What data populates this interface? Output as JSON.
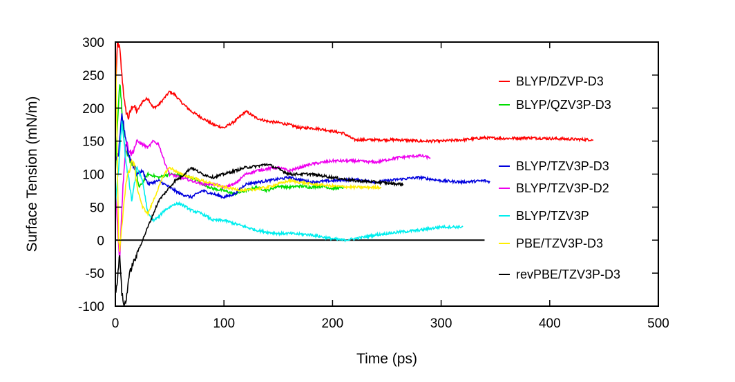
{
  "chart_data": {
    "type": "line",
    "title": "",
    "xlabel": "Time (ps)",
    "ylabel": "Surface Tension (mN/m)",
    "xlim": [
      0,
      500
    ],
    "ylim": [
      -100,
      300
    ],
    "x_ticks": [
      "0",
      "100",
      "200",
      "300",
      "400",
      "500"
    ],
    "y_ticks": [
      "300",
      "250",
      "200",
      "150",
      "100",
      "50",
      "0",
      "-50",
      "-100"
    ],
    "legend_position": "right",
    "reference_line": {
      "x": [
        0,
        340
      ],
      "y": 0,
      "color": "#000000"
    },
    "series": [
      {
        "name": "BLYP/DZVP-D3",
        "color": "#ff0000",
        "x": [
          0,
          2,
          4,
          6,
          9,
          12,
          16,
          20,
          25,
          30,
          35,
          40,
          45,
          50,
          55,
          60,
          70,
          80,
          90,
          100,
          110,
          120,
          130,
          140,
          150,
          160,
          170,
          180,
          190,
          200,
          210,
          220,
          240,
          260,
          280,
          300,
          320,
          340,
          360,
          380,
          400,
          420,
          440
        ],
        "y": [
          220,
          300,
          290,
          250,
          200,
          185,
          205,
          195,
          210,
          215,
          200,
          205,
          215,
          225,
          220,
          210,
          195,
          185,
          175,
          170,
          180,
          195,
          185,
          180,
          178,
          175,
          170,
          170,
          168,
          165,
          162,
          152,
          152,
          152,
          150,
          150,
          152,
          155,
          154,
          155,
          154,
          153,
          152
        ]
      },
      {
        "name": "BLYP/QZV3P-D3",
        "color": "#00dd00",
        "x": [
          0,
          2,
          4,
          6,
          8,
          10,
          14,
          18,
          22,
          26,
          30,
          40,
          50,
          60,
          70,
          80,
          90,
          100,
          110,
          120,
          130,
          140,
          150,
          160,
          170,
          180,
          190,
          200,
          210
        ],
        "y": [
          100,
          180,
          240,
          200,
          150,
          130,
          120,
          110,
          80,
          90,
          100,
          95,
          100,
          98,
          95,
          85,
          78,
          75,
          70,
          75,
          80,
          75,
          82,
          80,
          82,
          80,
          82,
          78,
          80
        ]
      },
      {
        "name": "BLYP/TZV3P-D3",
        "color": "#0000dd",
        "x": [
          0,
          3,
          6,
          9,
          12,
          15,
          20,
          25,
          30,
          40,
          50,
          60,
          70,
          80,
          90,
          100,
          110,
          120,
          140,
          160,
          180,
          200,
          220,
          240,
          260,
          280,
          300,
          320,
          340,
          345
        ],
        "y": [
          120,
          130,
          190,
          160,
          130,
          120,
          100,
          105,
          85,
          90,
          80,
          70,
          65,
          75,
          70,
          65,
          70,
          85,
          90,
          95,
          88,
          90,
          92,
          88,
          92,
          95,
          90,
          88,
          90,
          88
        ]
      },
      {
        "name": "BLYP/TZV3P-D2",
        "color": "#ee00ee",
        "x": [
          0,
          2,
          4,
          6,
          8,
          10,
          12,
          15,
          20,
          25,
          30,
          35,
          40,
          45,
          50,
          60,
          70,
          80,
          90,
          100,
          110,
          120,
          130,
          140,
          150,
          160,
          170,
          180,
          200,
          220,
          240,
          260,
          280,
          290
        ],
        "y": [
          80,
          20,
          -30,
          50,
          110,
          150,
          140,
          130,
          150,
          145,
          140,
          150,
          145,
          120,
          100,
          95,
          90,
          85,
          85,
          80,
          85,
          100,
          105,
          108,
          110,
          105,
          110,
          115,
          120,
          120,
          118,
          125,
          128,
          125
        ]
      },
      {
        "name": "BLYP/TZV3P",
        "color": "#00eeee",
        "x": [
          0,
          2,
          4,
          6,
          8,
          10,
          12,
          15,
          20,
          25,
          30,
          35,
          40,
          45,
          50,
          55,
          60,
          70,
          80,
          90,
          100,
          110,
          120,
          130,
          140,
          150,
          160,
          180,
          200,
          210,
          220,
          240,
          260,
          280,
          300,
          320
        ],
        "y": [
          50,
          90,
          130,
          180,
          150,
          110,
          100,
          60,
          110,
          90,
          40,
          30,
          35,
          45,
          50,
          55,
          55,
          45,
          40,
          30,
          30,
          25,
          20,
          15,
          12,
          10,
          10,
          8,
          2,
          0,
          2,
          8,
          12,
          15,
          20,
          20
        ]
      },
      {
        "name": "PBE/TZV3P-D3",
        "color": "#ffee00",
        "x": [
          0,
          1,
          2,
          3,
          4,
          6,
          8,
          10,
          12,
          15,
          18,
          20,
          25,
          30,
          35,
          40,
          45,
          50,
          55,
          60,
          70,
          80,
          90,
          100,
          120,
          140,
          160,
          180,
          200,
          220,
          240,
          245
        ],
        "y": [
          300,
          200,
          100,
          0,
          -20,
          20,
          60,
          90,
          100,
          120,
          110,
          80,
          50,
          40,
          60,
          80,
          100,
          110,
          105,
          100,
          95,
          90,
          85,
          80,
          75,
          80,
          90,
          85,
          82,
          80,
          80,
          80
        ]
      },
      {
        "name": "revPBE/TZV3P-D3",
        "color": "#000000",
        "x": [
          0,
          2,
          4,
          6,
          8,
          10,
          12,
          15,
          18,
          20,
          25,
          30,
          35,
          40,
          45,
          50,
          55,
          60,
          70,
          80,
          90,
          100,
          110,
          120,
          130,
          140,
          150,
          160,
          170,
          180,
          200,
          220,
          240,
          260,
          265
        ],
        "y": [
          -80,
          -60,
          -20,
          -80,
          -100,
          -90,
          -60,
          -40,
          -30,
          -20,
          0,
          20,
          40,
          60,
          70,
          80,
          90,
          95,
          110,
          100,
          95,
          100,
          105,
          110,
          112,
          115,
          108,
          100,
          100,
          100,
          95,
          90,
          88,
          85,
          85
        ]
      }
    ]
  }
}
